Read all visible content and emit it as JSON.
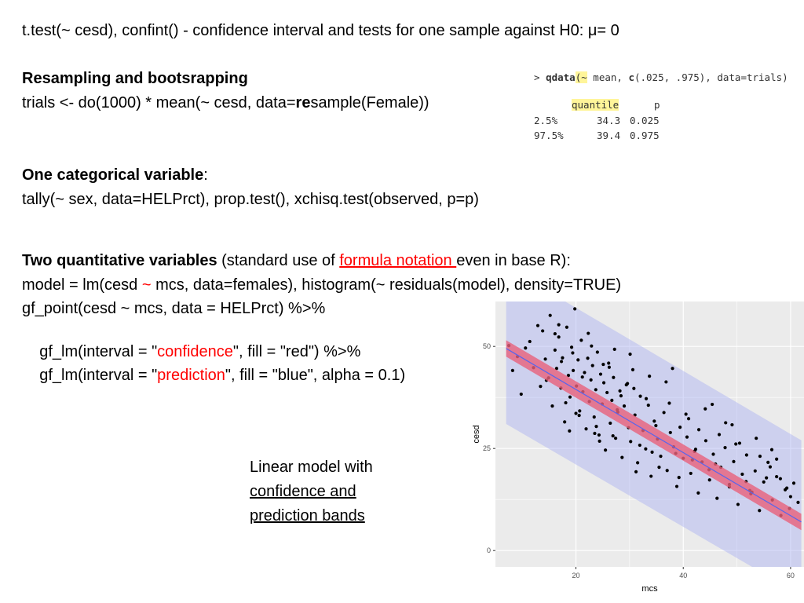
{
  "line1": "t.test(~ cesd),  confint()   - confidence interval and tests for one sample against H0: μ= 0",
  "resampling": {
    "heading": "Resampling and bootsrapping",
    "code_pre": "trials <- do(1000) * mean(~ cesd, data=",
    "code_bold": "re",
    "code_post": "sample(Female))"
  },
  "categorical": {
    "heading": "One categorical variable",
    "colon": ":",
    "code": "tally(~ sex, data=HELPrct),  prop.test(), xchisq.test(observed, p=p)"
  },
  "quantitative": {
    "heading": "Two quantitative variables",
    "desc_pre": " (standard use of ",
    "link": "formula notation ",
    "desc_post": "even in base R):",
    "model_pre": "model = lm(cesd ",
    "tilde": "~",
    "model_post": " mcs, data=females),  histogram(~ residuals(model), density=TRUE)",
    "gf_point": "gf_point(cesd ~ mcs, data = HELPrct) %>%",
    "gf_lm1_pre": "  gf_lm(interval = \"",
    "gf_lm1_word": "confidence",
    "gf_lm1_post": "\", fill = \"red\") %>%",
    "gf_lm2_pre": "  gf_lm(interval = \"",
    "gf_lm2_word": "prediction",
    "gf_lm2_post": "\", fill = \"blue\", alpha = 0.1)"
  },
  "console": {
    "command_prompt": "> ",
    "command_fn": "qdata",
    "command_paren": "(~",
    "command_mid": " mean, ",
    "command_c": "c",
    "command_rest": "(.025, .975), data=trials)",
    "header_quantile": "quantile",
    "header_p": "p",
    "rows": [
      {
        "label": "2.5%",
        "quantile": "34.3",
        "p": "0.025"
      },
      {
        "label": "97.5%",
        "quantile": "39.4",
        "p": "0.975"
      }
    ]
  },
  "caption": [
    "Linear model with",
    "confidence and",
    "prediction bands"
  ],
  "chart_data": {
    "type": "scatter",
    "xlabel": "mcs",
    "ylabel": "cesd",
    "x_ticks": [
      "20",
      "40",
      "60"
    ],
    "y_ticks": [
      "0",
      "25",
      "50"
    ],
    "xlim": [
      5,
      62.5
    ],
    "ylim": [
      -4,
      61
    ],
    "grid": true,
    "fit_line": {
      "x": [
        7,
        62
      ],
      "y": [
        49.5,
        7
      ]
    },
    "confidence_band": {
      "x": [
        7,
        62
      ],
      "lower": [
        47.5,
        5
      ],
      "upper": [
        51.5,
        9
      ]
    },
    "prediction_band": {
      "x": [
        7,
        62
      ],
      "lower": [
        31,
        -11
      ],
      "upper": [
        69.5,
        27
      ]
    },
    "colors": {
      "panel": "#ebebeb",
      "grid": "#ffffff",
      "points": "#000000",
      "confidence": "#e8607a",
      "prediction": "#a9aff2",
      "line": "#5566ee"
    },
    "points": {
      "x": [
        7.5,
        8.2,
        9.1,
        9.8,
        10.6,
        11.4,
        12.1,
        12.9,
        13.4,
        13.8,
        14.3,
        14.9,
        15.2,
        15.6,
        16.1,
        16.4,
        16.8,
        17.2,
        17.5,
        17.9,
        18.3,
        18.6,
        18.9,
        19.2,
        19.5,
        19.8,
        20.1,
        20.4,
        20.7,
        21.0,
        21.3,
        21.6,
        21.9,
        22.2,
        22.5,
        22.8,
        23.1,
        23.4,
        23.7,
        24.0,
        24.3,
        24.6,
        24.9,
        25.2,
        25.5,
        25.8,
        26.1,
        26.4,
        26.7,
        27.0,
        27.4,
        27.8,
        28.2,
        28.6,
        29.0,
        29.4,
        29.8,
        30.2,
        30.6,
        31.0,
        31.5,
        32.0,
        32.5,
        33.0,
        33.5,
        34.0,
        34.6,
        35.2,
        35.8,
        36.4,
        37.0,
        37.6,
        38.2,
        38.8,
        39.4,
        40.0,
        40.7,
        41.4,
        42.1,
        42.8,
        43.5,
        44.2,
        44.9,
        45.6,
        46.3,
        47.0,
        47.8,
        48.6,
        49.4,
        50.2,
        51.0,
        51.8,
        52.6,
        53.4,
        54.2,
        55.0,
        55.8,
        56.6,
        57.4,
        58.2,
        59.0,
        59.8,
        60.6,
        61.4,
        14.5,
        16.8,
        18.1,
        19.4,
        20.6,
        22.3,
        23.8,
        25.1,
        26.9,
        28.4,
        30.1,
        31.9,
        33.7,
        35.5,
        37.4,
        39.2,
        41.0,
        42.9,
        44.8,
        46.7,
        48.6,
        50.5,
        52.4,
        54.3,
        56.2,
        58.1,
        60.0,
        17.3,
        18.8,
        21.2,
        22.9,
        24.4,
        26.2,
        27.7,
        29.6,
        31.2,
        33.1,
        34.9,
        36.8,
        38.6,
        40.5,
        42.3,
        44.1,
        46.0,
        47.9,
        49.8,
        51.7,
        53.6,
        55.5,
        57.4,
        59.3,
        16.1,
        20.0,
        23.5,
        27.2,
        30.8,
        34.2,
        38.0,
        41.7,
        45.4,
        49.1,
        52.8,
        56.5
      ],
      "y": [
        50.2,
        44.1,
        47.5,
        38.3,
        49.6,
        51.2,
        44.8,
        55.1,
        40.2,
        53.8,
        46.9,
        42.3,
        57.6,
        35.4,
        49.1,
        44.6,
        52.3,
        39.8,
        47.2,
        31.5,
        54.7,
        42.9,
        37.6,
        49.8,
        44.1,
        59.2,
        40.3,
        46.7,
        34.2,
        51.5,
        38.9,
        43.6,
        29.8,
        47.1,
        36.5,
        41.8,
        45.3,
        32.7,
        39.4,
        48.6,
        28.3,
        43.2,
        35.9,
        41.1,
        24.6,
        38.7,
        45.9,
        31.2,
        36.8,
        42.4,
        27.5,
        33.9,
        39.1,
        22.8,
        35.4,
        40.6,
        30.1,
        26.7,
        44.3,
        33.2,
        21.5,
        37.8,
        29.4,
        24.9,
        35.6,
        18.2,
        31.7,
        27.3,
        23.1,
        33.8,
        19.6,
        28.9,
        25.4,
        15.7,
        30.2,
        22.6,
        27.8,
        18.9,
        24.3,
        14.1,
        21.7,
        26.9,
        17.3,
        23.6,
        12.8,
        20.4,
        25.2,
        15.6,
        21.8,
        11.3,
        18.7,
        23.4,
        13.9,
        19.5,
        9.8,
        16.8,
        21.6,
        12.4,
        18.1,
        8.6,
        14.9,
        10.3,
        16.5,
        11.8,
        41.7,
        55.3,
        36.2,
        48.4,
        33.1,
        53.2,
        30.4,
        45.6,
        28.1,
        37.9,
        48.1,
        25.8,
        42.7,
        20.4,
        36.1,
        17.9,
        32.3,
        29.6,
        19.8,
        28.4,
        16.2,
        26.3,
        14.7,
        23.1,
        20.5,
        17.6,
        13.2,
        46.3,
        29.3,
        42.5,
        50.1,
        26.8,
        44.9,
        34.5,
        40.9,
        19.3,
        37.2,
        30.6,
        41.3,
        23.8,
        33.4,
        24.8,
        34.7,
        21.2,
        31.3,
        26.1,
        16.9,
        27.5,
        17.8,
        22.4,
        15.3,
        53.1,
        33.6,
        28.7,
        49.3,
        39.7,
        24.1,
        44.6,
        22.2,
        35.8,
        30.8,
        14.3,
        24.7
      ]
    }
  }
}
